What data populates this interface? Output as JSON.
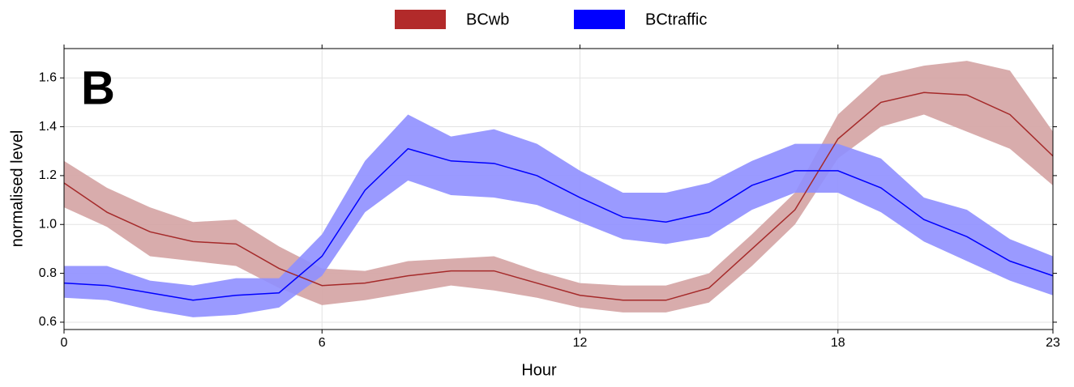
{
  "chart_data": {
    "type": "line-band",
    "panel_label": "B",
    "x_label": "Hour",
    "y_label": "normalised level",
    "x": [
      0,
      1,
      2,
      3,
      4,
      5,
      6,
      7,
      8,
      9,
      10,
      11,
      12,
      13,
      14,
      15,
      16,
      17,
      18,
      19,
      20,
      21,
      22,
      23
    ],
    "xlim": [
      0,
      23
    ],
    "xticks": [
      0,
      6,
      12,
      18,
      23
    ],
    "ylim": [
      0.57,
      1.72
    ],
    "yticks": [
      0.6,
      0.8,
      {
        "value": 1,
        "label": "1.0"
      },
      1.2,
      1.4,
      1.6
    ],
    "grid": true,
    "legend_position": "top",
    "series": [
      {
        "name": "BCwb",
        "color": "#a52a2a",
        "band_color": "#d4a3a3",
        "values": [
          1.17,
          1.05,
          0.97,
          0.93,
          0.92,
          0.82,
          0.75,
          0.76,
          0.79,
          0.81,
          0.81,
          0.76,
          0.71,
          0.69,
          0.69,
          0.74,
          0.9,
          1.06,
          1.35,
          1.5,
          1.54,
          1.53,
          1.45,
          1.28
        ],
        "upper": [
          1.26,
          1.15,
          1.07,
          1.01,
          1.02,
          0.91,
          0.82,
          0.81,
          0.85,
          0.86,
          0.87,
          0.81,
          0.76,
          0.75,
          0.75,
          0.8,
          0.96,
          1.13,
          1.45,
          1.61,
          1.65,
          1.67,
          1.63,
          1.38
        ],
        "lower": [
          1.07,
          0.99,
          0.87,
          0.85,
          0.83,
          0.74,
          0.67,
          0.69,
          0.72,
          0.75,
          0.73,
          0.7,
          0.66,
          0.64,
          0.64,
          0.68,
          0.83,
          1.0,
          1.27,
          1.4,
          1.45,
          1.38,
          1.31,
          1.16
        ]
      },
      {
        "name": "BCtraffic",
        "color": "#0000ff",
        "band_color": "#8f8fff",
        "values": [
          0.76,
          0.75,
          0.72,
          0.69,
          0.71,
          0.72,
          0.87,
          1.14,
          1.31,
          1.26,
          1.25,
          1.2,
          1.11,
          1.03,
          1.01,
          1.05,
          1.16,
          1.22,
          1.22,
          1.15,
          1.02,
          0.95,
          0.85,
          0.79
        ],
        "upper": [
          0.83,
          0.83,
          0.77,
          0.75,
          0.78,
          0.78,
          0.96,
          1.26,
          1.45,
          1.36,
          1.39,
          1.33,
          1.22,
          1.13,
          1.13,
          1.17,
          1.26,
          1.33,
          1.33,
          1.27,
          1.11,
          1.06,
          0.94,
          0.87
        ],
        "lower": [
          0.7,
          0.69,
          0.65,
          0.62,
          0.63,
          0.66,
          0.79,
          1.05,
          1.18,
          1.12,
          1.11,
          1.08,
          1.01,
          0.94,
          0.92,
          0.95,
          1.06,
          1.13,
          1.13,
          1.05,
          0.93,
          0.85,
          0.77,
          0.71
        ]
      }
    ]
  }
}
